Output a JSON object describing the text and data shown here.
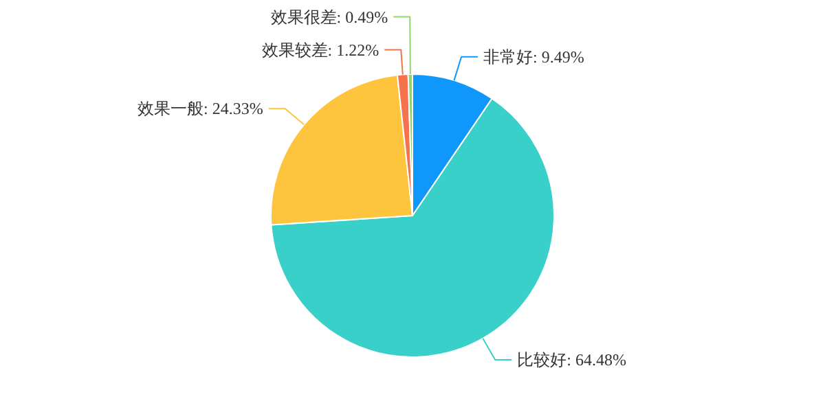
{
  "chart_data": {
    "type": "pie",
    "categories": [
      "非常好",
      "比较好",
      "效果一般",
      "效果较差",
      "效果很差"
    ],
    "values": [
      9.49,
      64.48,
      24.33,
      1.22,
      0.49
    ],
    "value_labels": [
      "9.49%",
      "64.48%",
      "24.33%",
      "1.22%",
      "0.49%"
    ],
    "colors": [
      "#0f97fb",
      "#38d0c9",
      "#fec43e",
      "#f4734c",
      "#8fd56f"
    ],
    "legend": false
  }
}
